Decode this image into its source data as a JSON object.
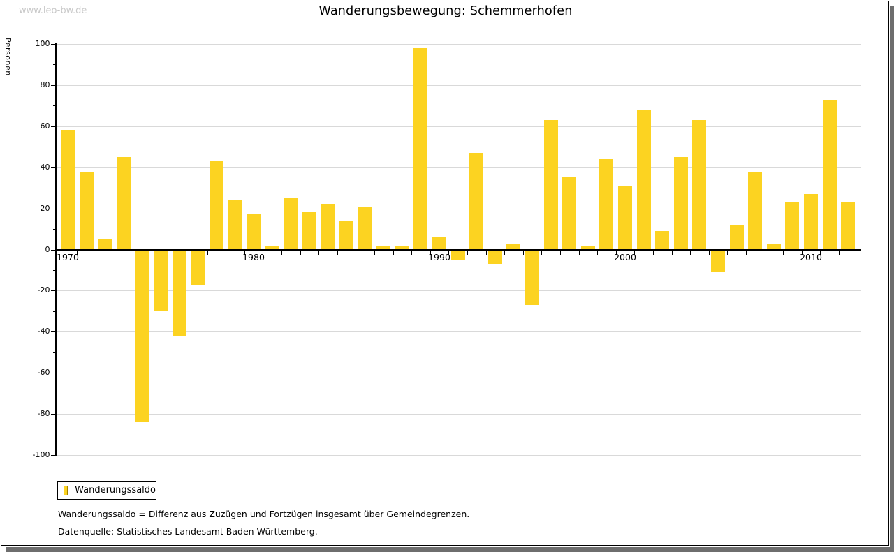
{
  "watermark": "www.leo-bw.de",
  "title": "Wanderungsbewegung: Schemmerhofen",
  "legend": {
    "label": "Wanderungssaldo"
  },
  "footnotes": {
    "line1": "Wanderungssaldo = Differenz aus Zuzügen und Fortzügen insgesamt über Gemeindegrenzen.",
    "line2": "Datenquelle: Statistisches Landesamt Baden-Württemberg."
  },
  "colors": {
    "bar": "#fcd321",
    "legend_swatch_border": "#a38200",
    "grid": "#d9d9d9",
    "axis": "#000000",
    "watermark": "#c8c8c8",
    "frame_shadow": "#6e6e6e"
  },
  "chart_data": {
    "type": "bar",
    "title": "Wanderungsbewegung: Schemmerhofen",
    "xlabel": "",
    "ylabel": "Personen",
    "ylim": [
      -100,
      100
    ],
    "ytick_step": 20,
    "ytick_minor_step": 10,
    "grid": true,
    "legend_position": "bottom-left",
    "decade_tick_labels": [
      "1970",
      "1980",
      "1990",
      "2000",
      "2010"
    ],
    "series": [
      {
        "name": "Wanderungssaldo",
        "years": [
          1970,
          1971,
          1972,
          1973,
          1974,
          1975,
          1976,
          1977,
          1978,
          1979,
          1980,
          1981,
          1982,
          1983,
          1984,
          1985,
          1986,
          1987,
          1988,
          1989,
          1990,
          1991,
          1992,
          1993,
          1994,
          1995,
          1996,
          1997,
          1998,
          1999,
          2000,
          2001,
          2002,
          2003,
          2004,
          2005,
          2006,
          2007,
          2008,
          2009,
          2010,
          2011,
          2012
        ],
        "values": [
          58,
          38,
          5,
          45,
          -84,
          -30,
          -42,
          -17,
          43,
          24,
          17,
          2,
          25,
          18,
          22,
          14,
          21,
          2,
          2,
          98,
          6,
          -5,
          47,
          -7,
          3,
          -27,
          63,
          35,
          2,
          44,
          31,
          68,
          9,
          45,
          63,
          -11,
          12,
          38,
          3,
          23,
          27,
          73,
          23
        ]
      }
    ]
  }
}
